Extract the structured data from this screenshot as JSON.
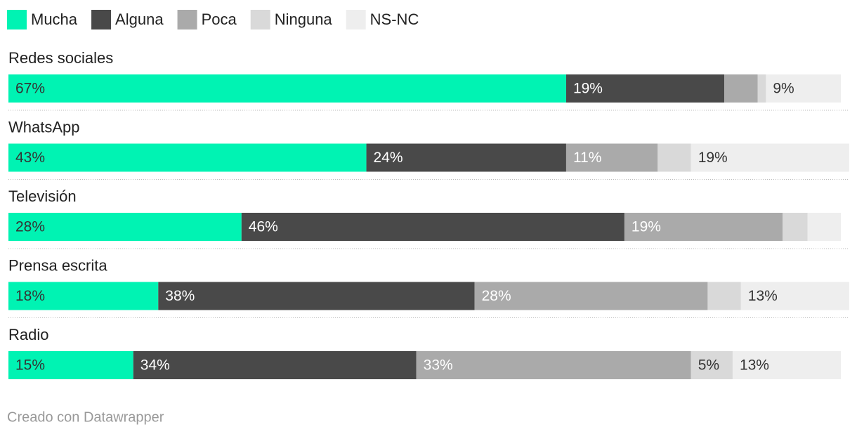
{
  "chart_data": {
    "type": "stacked-bar",
    "orientation": "horizontal",
    "categories": [
      "Redes sociales",
      "WhatsApp",
      "Televisión",
      "Prensa escrita",
      "Radio"
    ],
    "series": [
      {
        "name": "Mucha",
        "color": "#00f3b3",
        "label_color": "#333333",
        "values": [
          67,
          43,
          28,
          18,
          15
        ],
        "value_labels": [
          "67%",
          "43%",
          "28%",
          "18%",
          "15%"
        ]
      },
      {
        "name": "Alguna",
        "color": "#494949",
        "label_color": "#ffffff",
        "values": [
          19,
          24,
          46,
          38,
          34
        ],
        "value_labels": [
          "19%",
          "24%",
          "46%",
          "38%",
          "34%"
        ]
      },
      {
        "name": "Poca",
        "color": "#aaaaaa",
        "label_color": "#ffffff",
        "values": [
          4,
          11,
          19,
          28,
          33
        ],
        "value_labels": [
          null,
          "11%",
          "19%",
          "28%",
          "33%"
        ]
      },
      {
        "name": "Ninguna",
        "color": "#d9d9d9",
        "label_color": "#333333",
        "values": [
          1,
          4,
          3,
          4,
          5
        ],
        "value_labels": [
          null,
          null,
          null,
          null,
          "5%"
        ]
      },
      {
        "name": "NS-NC",
        "color": "#eeeeee",
        "label_color": "#333333",
        "values": [
          9,
          19,
          4,
          13,
          13
        ],
        "value_labels": [
          "9%",
          "19%",
          null,
          "13%",
          "13%"
        ]
      }
    ],
    "xlim": [
      0,
      100
    ],
    "credit": "Creado con Datawrapper"
  }
}
